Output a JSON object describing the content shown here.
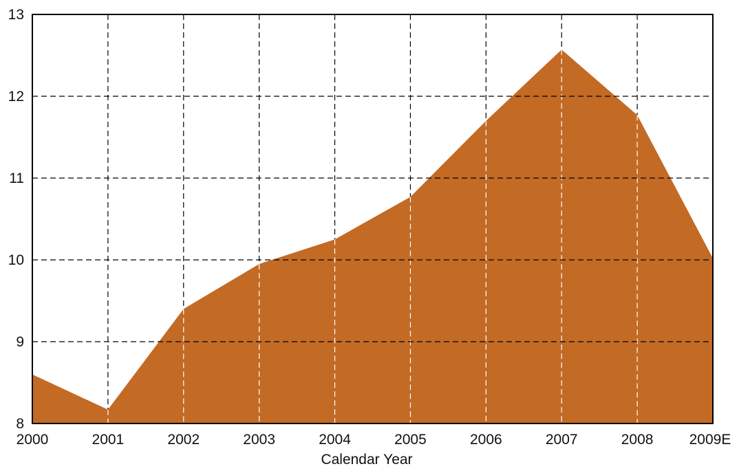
{
  "chart_data": {
    "type": "area",
    "title": "",
    "xlabel": "Calendar Year",
    "ylabel": "",
    "categories": [
      "2000",
      "2001",
      "2002",
      "2003",
      "2004",
      "2005",
      "2006",
      "2007",
      "2008",
      "2009E"
    ],
    "series": [
      {
        "values": [
          8.6,
          8.17,
          9.4,
          9.95,
          10.25,
          10.77,
          11.7,
          12.57,
          11.77,
          10.02
        ]
      }
    ],
    "ylim": [
      8,
      13
    ],
    "yticks": [
      "8",
      "9",
      "10",
      "11",
      "12",
      "13"
    ],
    "grid": true,
    "fill_color": "#c36a25",
    "grid_color": "#000000"
  }
}
